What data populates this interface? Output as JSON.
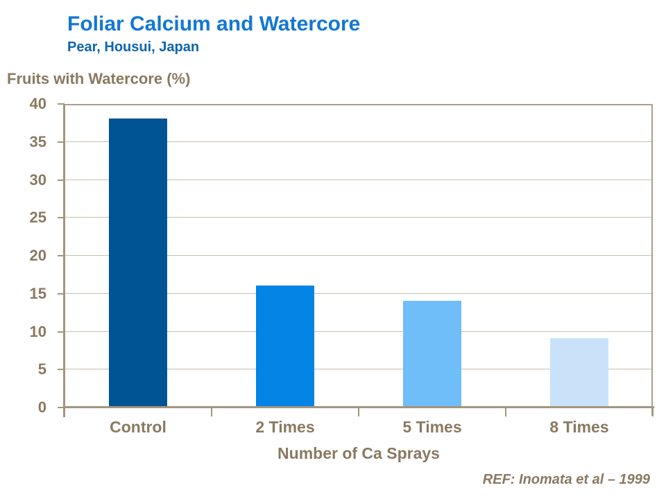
{
  "header": {
    "title": "Foliar Calcium and Watercore",
    "subtitle": "Pear, Housui, Japan"
  },
  "chart_data": {
    "type": "bar",
    "title": "Foliar Calcium and Watercore",
    "subtitle": "Pear, Housui, Japan",
    "ylabel": "Fruits with Watercore (%)",
    "xlabel": "Number of Ca Sprays",
    "categories": [
      "Control",
      "2 Times",
      "5 Times",
      "8 Times"
    ],
    "values": [
      38,
      16,
      14,
      9
    ],
    "bar_colors": [
      "#015494",
      "#0484E4",
      "#6FBDF9",
      "#C9E2F9"
    ],
    "ylim": [
      0,
      40
    ],
    "ytick_step": 5,
    "yticks": [
      0,
      5,
      10,
      15,
      20,
      25,
      30,
      35,
      40
    ],
    "grid": true,
    "legend": false
  },
  "footer": {
    "reference": "REF: Inomata et al – 1999"
  },
  "colors": {
    "title": "#1277D3",
    "subtitle": "#0D64B0",
    "axis_text": "#8A7960",
    "grid_line": "#C8BEAD",
    "axis_line": "#A2967F",
    "frame_line": "#A99E8C"
  }
}
